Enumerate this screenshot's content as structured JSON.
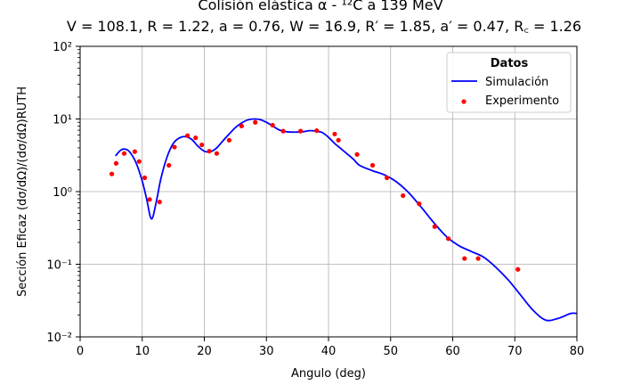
{
  "chart_data": {
    "type": "line",
    "title": "Colisión elástica α - ¹²C a 139 MeV",
    "subtitle": "V = 108.1, R = 1.22, a = 0.76, W = 16.9, R′ = 1.85, a′ = 0.47, R꜀ = 1.26",
    "xlabel": "Angulo (deg)",
    "ylabel": "Sección Eficaz (dσ/dΩ)/(dσ/dΩ)RUTH",
    "xlim": [
      0,
      80
    ],
    "ylim": [
      0.01,
      100
    ],
    "yscale": "log",
    "grid": true,
    "legend": {
      "title": "Datos",
      "placement": "top-right"
    },
    "xticks": [
      0,
      10,
      20,
      30,
      40,
      50,
      60,
      70,
      80
    ],
    "yticks": [
      0.01,
      0.1,
      1,
      10,
      100
    ],
    "ytick_labels": [
      "10⁻²",
      "10⁻¹",
      "10⁰",
      "10¹",
      "10²"
    ],
    "series": [
      {
        "name": "Simulación",
        "kind": "line",
        "color": "#0000ff",
        "x": [
          5.7,
          6.5,
          7.2,
          8.0,
          9.0,
          10.0,
          10.7,
          11.5,
          12.3,
          13.0,
          14.0,
          15.0,
          16.0,
          17.0,
          18.0,
          19.0,
          20.0,
          21.0,
          22.0,
          23.0,
          24.0,
          25.0,
          26.0,
          27.0,
          28.0,
          29.0,
          30.0,
          31.0,
          32.0,
          33.0,
          34.0,
          35.0,
          36.0,
          37.0,
          38.0,
          39.0,
          40.0,
          41.0,
          42.0,
          43.0,
          44.0,
          45.0,
          47.0,
          49.0,
          51.0,
          53.0,
          55.0,
          57.0,
          59.0,
          61.0,
          63.0,
          65.0,
          67.0,
          69.0,
          71.0,
          73.0,
          75.0,
          77.0,
          79.0,
          80.0
        ],
        "y": [
          3.1,
          3.7,
          3.85,
          3.5,
          2.5,
          1.4,
          0.8,
          0.42,
          0.75,
          1.5,
          3.0,
          4.6,
          5.5,
          5.7,
          5.2,
          4.2,
          3.6,
          3.55,
          4.0,
          5.0,
          6.2,
          7.6,
          8.8,
          9.7,
          10.0,
          9.8,
          9.0,
          8.0,
          7.1,
          6.7,
          6.6,
          6.6,
          6.7,
          6.9,
          6.8,
          6.5,
          5.6,
          4.6,
          3.9,
          3.3,
          2.8,
          2.3,
          1.95,
          1.7,
          1.35,
          0.95,
          0.6,
          0.37,
          0.24,
          0.18,
          0.15,
          0.125,
          0.09,
          0.06,
          0.037,
          0.023,
          0.017,
          0.018,
          0.021,
          0.021
        ]
      },
      {
        "name": "Experimento",
        "kind": "scatter",
        "color": "#ff0000",
        "x": [
          5.1,
          5.8,
          7.1,
          8.8,
          9.5,
          10.4,
          11.2,
          12.8,
          14.3,
          15.2,
          17.3,
          18.6,
          19.6,
          20.8,
          22.0,
          24.0,
          26.0,
          28.2,
          31.0,
          32.7,
          35.5,
          38.1,
          41.0,
          41.6,
          44.6,
          47.1,
          49.4,
          52.0,
          54.6,
          57.1,
          59.3,
          61.9,
          64.1,
          70.5
        ],
        "y": [
          1.75,
          2.45,
          3.35,
          3.55,
          2.6,
          1.55,
          0.78,
          0.72,
          2.3,
          4.1,
          5.9,
          5.5,
          4.4,
          3.6,
          3.35,
          5.1,
          8.0,
          9.0,
          8.2,
          6.8,
          6.8,
          6.9,
          6.2,
          5.1,
          3.25,
          2.3,
          1.55,
          0.88,
          0.68,
          0.33,
          0.225,
          0.12,
          0.12,
          0.085
        ]
      }
    ]
  }
}
